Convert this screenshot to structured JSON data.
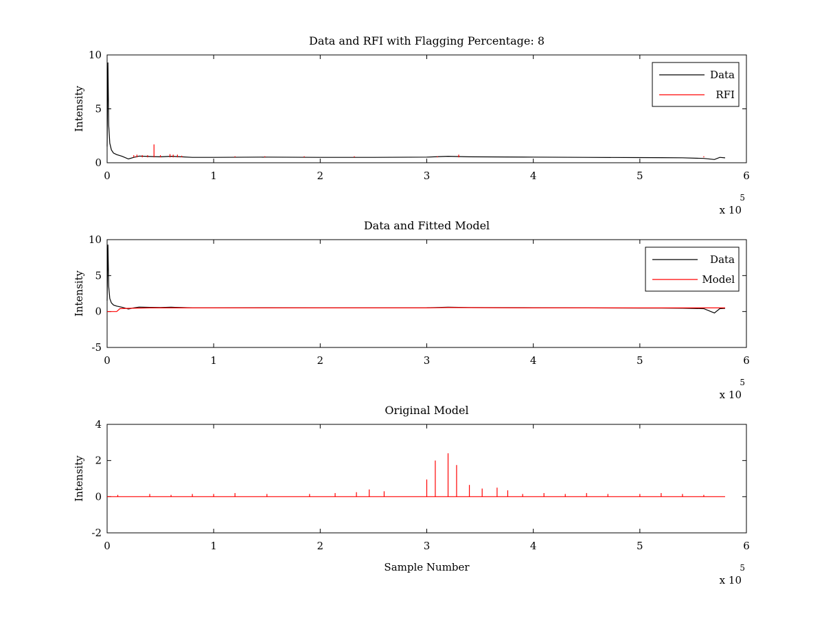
{
  "chart_data": [
    {
      "type": "line",
      "title": "Data and RFI with Flagging Percentage: 8",
      "xlabel": "",
      "ylabel": "Intensity",
      "x_multiplier": "x 10",
      "x_multiplier_exp": "5",
      "xlim": [
        0,
        600000
      ],
      "ylim": [
        0,
        10
      ],
      "xticks": [
        0,
        100000,
        200000,
        300000,
        400000,
        500000,
        600000
      ],
      "xtick_labels": [
        "0",
        "1",
        "2",
        "3",
        "4",
        "5",
        "6"
      ],
      "yticks": [
        0,
        5,
        10
      ],
      "ytick_labels": [
        "0",
        "5",
        "10"
      ],
      "legend": "top-right",
      "series": [
        {
          "name": "Data",
          "color": "#000000",
          "x": [
            0,
            800,
            1500,
            2500,
            4000,
            6000,
            9000,
            14000,
            20000,
            25000,
            30000,
            40000,
            50000,
            60000,
            70000,
            80000,
            100000,
            150000,
            200000,
            250000,
            300000,
            320000,
            340000,
            400000,
            450000,
            500000,
            520000,
            540000,
            560000,
            570000,
            575000,
            580000
          ],
          "values": [
            1.5,
            9.3,
            3.5,
            1.8,
            1.2,
            0.9,
            0.75,
            0.6,
            0.35,
            0.5,
            0.62,
            0.58,
            0.55,
            0.6,
            0.55,
            0.5,
            0.5,
            0.52,
            0.5,
            0.5,
            0.52,
            0.6,
            0.55,
            0.52,
            0.5,
            0.48,
            0.47,
            0.46,
            0.4,
            0.3,
            0.5,
            0.45
          ]
        },
        {
          "name": "RFI",
          "color": "#ff0000",
          "spikes_x": [
            25000,
            28000,
            33000,
            38000,
            44000,
            50000,
            59000,
            62000,
            66000,
            70000,
            120000,
            148000,
            185000,
            232000,
            310000,
            330000,
            560000
          ],
          "spikes_y": [
            0.7,
            0.75,
            0.7,
            0.7,
            1.7,
            0.7,
            0.8,
            0.75,
            0.75,
            0.65,
            0.6,
            0.6,
            0.6,
            0.6,
            0.6,
            0.75,
            0.6
          ]
        }
      ]
    },
    {
      "type": "line",
      "title": "Data and Fitted Model",
      "xlabel": "",
      "ylabel": "Intensity",
      "x_multiplier": "x 10",
      "x_multiplier_exp": "5",
      "xlim": [
        0,
        600000
      ],
      "ylim": [
        -5,
        10
      ],
      "xticks": [
        0,
        100000,
        200000,
        300000,
        400000,
        500000,
        600000
      ],
      "xtick_labels": [
        "0",
        "1",
        "2",
        "3",
        "4",
        "5",
        "6"
      ],
      "yticks": [
        -5,
        0,
        5,
        10
      ],
      "ytick_labels": [
        "-5",
        "0",
        "5",
        "10"
      ],
      "legend": "top-right",
      "series": [
        {
          "name": "Data",
          "color": "#000000",
          "x": [
            0,
            800,
            1500,
            2500,
            4000,
            6000,
            9000,
            14000,
            20000,
            25000,
            30000,
            40000,
            50000,
            60000,
            70000,
            80000,
            100000,
            150000,
            200000,
            250000,
            300000,
            320000,
            340000,
            400000,
            450000,
            500000,
            520000,
            540000,
            560000,
            570000,
            575000,
            580000
          ],
          "values": [
            1.5,
            9.3,
            3.5,
            1.8,
            1.2,
            0.9,
            0.75,
            0.6,
            0.35,
            0.5,
            0.62,
            0.58,
            0.55,
            0.6,
            0.55,
            0.5,
            0.5,
            0.52,
            0.5,
            0.5,
            0.52,
            0.6,
            0.55,
            0.52,
            0.5,
            0.48,
            0.47,
            0.46,
            0.4,
            -0.2,
            0.4,
            0.45
          ]
        },
        {
          "name": "Model",
          "color": "#ff0000",
          "x": [
            0,
            9000,
            12000,
            20000,
            40000,
            60000,
            100000,
            200000,
            300000,
            320000,
            400000,
            500000,
            560000,
            570000,
            580000
          ],
          "values": [
            0,
            0,
            0.4,
            0.45,
            0.5,
            0.5,
            0.5,
            0.5,
            0.5,
            0.55,
            0.5,
            0.5,
            0.5,
            0.5,
            0.5
          ]
        }
      ]
    },
    {
      "type": "line",
      "title": "Original Model",
      "xlabel": "Sample Number",
      "ylabel": "Intensity",
      "x_multiplier": "x 10",
      "x_multiplier_exp": "5",
      "xlim": [
        0,
        600000
      ],
      "ylim": [
        -2,
        4
      ],
      "xticks": [
        0,
        100000,
        200000,
        300000,
        400000,
        500000,
        600000
      ],
      "xtick_labels": [
        "0",
        "1",
        "2",
        "3",
        "4",
        "5",
        "6"
      ],
      "yticks": [
        -2,
        0,
        2,
        4
      ],
      "ytick_labels": [
        "-2",
        "0",
        "2",
        "4"
      ],
      "legend": "none",
      "series": [
        {
          "color": "#ff0000",
          "baseline": [
            0,
            580000,
            0
          ],
          "spikes_x": [
            300000,
            308000,
            320000,
            328000,
            340000,
            352000,
            366000,
            376000,
            246000,
            260000,
            234000,
            214000,
            190000,
            150000,
            120000,
            100000,
            80000,
            60000,
            40000,
            10000,
            390000,
            410000,
            430000,
            450000,
            470000,
            500000,
            520000,
            540000,
            560000
          ],
          "spikes_y": [
            0.95,
            2.0,
            2.4,
            1.75,
            0.65,
            0.45,
            0.5,
            0.35,
            0.4,
            0.3,
            0.25,
            0.2,
            0.15,
            0.15,
            0.2,
            0.15,
            0.15,
            0.1,
            0.15,
            0.1,
            0.15,
            0.2,
            0.15,
            0.2,
            0.15,
            0.15,
            0.2,
            0.15,
            0.1
          ]
        }
      ]
    }
  ]
}
